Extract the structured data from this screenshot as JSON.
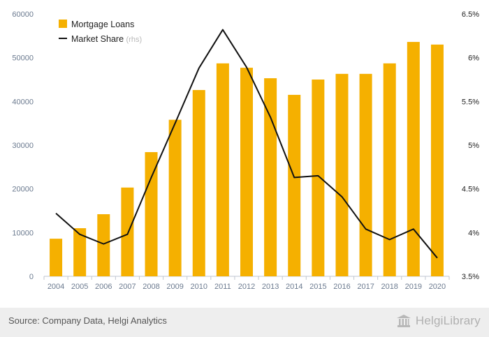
{
  "chart_data": {
    "type": "bar",
    "categories": [
      "2004",
      "2005",
      "2006",
      "2007",
      "2008",
      "2009",
      "2010",
      "2011",
      "2012",
      "2013",
      "2014",
      "2015",
      "2016",
      "2017",
      "2018",
      "2019",
      "2020"
    ],
    "series": [
      {
        "name": "Mortgage Loans",
        "type": "bar",
        "axis": "left",
        "color": "#f5b000",
        "values": [
          8600,
          11000,
          14200,
          20300,
          28400,
          35800,
          42600,
          48700,
          47700,
          45300,
          41500,
          45000,
          46300,
          46300,
          48700,
          53600,
          53000
        ]
      },
      {
        "name": "Market Share",
        "type": "line",
        "axis": "right",
        "color": "#111111",
        "values": [
          4.22,
          3.98,
          3.87,
          3.98,
          4.63,
          5.25,
          5.88,
          6.32,
          5.89,
          5.32,
          4.63,
          4.65,
          4.41,
          4.04,
          3.92,
          4.04,
          3.71
        ]
      }
    ],
    "y_left": {
      "lim": [
        0,
        60000
      ],
      "ticks": [
        0,
        10000,
        20000,
        30000,
        40000,
        50000,
        60000
      ],
      "tick_labels": [
        "0",
        "10000",
        "20000",
        "30000",
        "40000",
        "50000",
        "60000"
      ]
    },
    "y_right": {
      "lim": [
        3.5,
        6.5
      ],
      "ticks": [
        3.5,
        4.0,
        4.5,
        5.0,
        5.5,
        6.0,
        6.5
      ],
      "tick_labels": [
        "3.5%",
        "4%",
        "4.5%",
        "5%",
        "5.5%",
        "6%",
        "6.5%"
      ]
    },
    "legend": {
      "placement": "top-left",
      "line_suffix": "(rhs)"
    },
    "grid": false
  },
  "footer": {
    "source": "Source: Company Data, Helgi Analytics",
    "brand": "HelgiLibrary"
  }
}
